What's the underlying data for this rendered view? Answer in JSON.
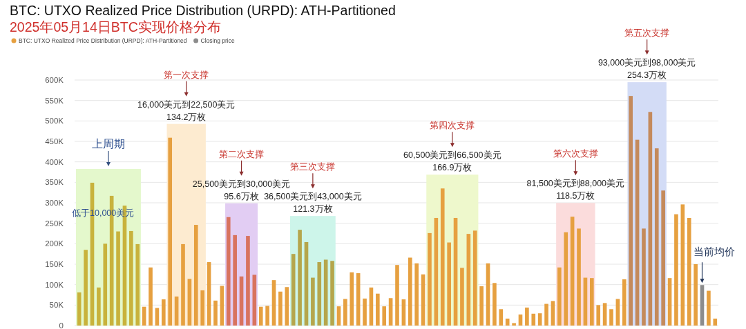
{
  "chart_data": {
    "type": "bar",
    "title": "BTC: UTXO Realized Price Distribution (URPD): ATH-Partitioned",
    "subtitle": "2025年05月14日BTC实现价格分布",
    "categories": [
      null,
      null,
      null,
      null,
      null,
      null,
      null,
      null,
      null,
      null,
      null,
      null,
      null,
      null,
      null,
      null,
      null,
      null,
      null,
      null,
      null,
      null,
      null,
      null,
      null,
      null,
      null,
      null,
      null,
      null,
      null,
      null,
      null,
      null,
      null,
      null,
      null,
      null,
      null,
      null,
      null,
      null,
      null,
      null,
      null,
      null,
      null,
      null,
      null,
      null,
      null,
      null,
      null,
      null,
      null,
      null,
      null,
      null,
      null,
      null,
      null,
      null,
      null,
      null,
      null,
      null,
      null,
      null,
      null,
      null,
      null,
      null,
      null,
      null,
      null,
      null,
      null,
      null,
      null,
      null,
      null,
      null,
      null,
      null,
      null,
      null,
      null,
      null,
      null,
      null,
      null,
      null,
      null,
      null,
      null,
      null,
      null,
      null,
      null
    ],
    "series": [
      {
        "name": "BTC: UTXO Realized Price Distribution (URPD): ATH-Partitioned",
        "color": "#e6a040",
        "colors": [
          "#c8b23c",
          "#c8b23c",
          "#c8b23c",
          "#c8b23c",
          "#c8b23c",
          "#c8b23c",
          "#c8b23c",
          "#c8b23c",
          "#c8b23c",
          "#c8b23c",
          "#e6a040",
          "#e6a040",
          "#e6a040",
          "#e6a040",
          "#e6a040",
          "#e6a040",
          "#e6a040",
          "#e6a040",
          "#e6a040",
          "#e6a040",
          "#e6a040",
          "#e6a040",
          "#e6a040",
          "#d8735f",
          "#d8735f",
          "#d8735f",
          "#d8735f",
          "#d8735f",
          "#e6a040",
          "#e6a040",
          "#e6a040",
          "#e6a040",
          "#e6a040",
          "#b5a64c",
          "#b5a64c",
          "#b5a64c",
          "#b5a64c",
          "#b5a64c",
          "#b5a64c",
          "#b5a64c",
          "#e6a040",
          "#e6a040",
          "#e6a040",
          "#e6a040",
          "#e6a040",
          "#e6a040",
          "#e6a040",
          "#e6a040",
          "#e6a040",
          "#e6a040",
          "#e6a040",
          "#e6a040",
          "#e6a040",
          "#e6a040",
          "#e6a040",
          "#e6a040",
          "#e6a040",
          "#e6a040",
          "#e6a040",
          "#e6a040",
          "#e6a040",
          "#e6a040",
          "#e6a040",
          "#e6a040",
          "#e6a040",
          "#e6a040",
          "#e6a040",
          "#e6a040",
          "#e6a040",
          "#e6a040",
          "#e6a040",
          "#e6a040",
          "#e6a040",
          "#e6a040",
          "#e6a040",
          "#e6a040",
          "#e6a040",
          "#e6a040",
          "#e6a040",
          "#e6a040",
          "#e6a040",
          "#e6a040",
          "#e6a040",
          "#e6a040",
          "#e6a040",
          "#c48a5c",
          "#c48a5c",
          "#c48a5c",
          "#c48a5c",
          "#c48a5c",
          "#c48a5c",
          "#e6a040",
          "#e6a040",
          "#e6a040",
          "#e6a040",
          "#e6a040",
          null,
          "#e6a040",
          "#e6a040"
        ],
        "values": [
          81000,
          185000,
          349000,
          93000,
          200000,
          317000,
          230000,
          293000,
          231000,
          199000,
          46000,
          142000,
          43000,
          64000,
          459000,
          71000,
          199000,
          114000,
          246000,
          86000,
          155000,
          61000,
          97000,
          265000,
          221000,
          120000,
          219000,
          124000,
          46000,
          48000,
          111000,
          83000,
          94000,
          175000,
          234000,
          204000,
          117000,
          155000,
          161000,
          158000,
          47000,
          65000,
          130000,
          128000,
          66000,
          93000,
          78000,
          47000,
          67000,
          148000,
          64000,
          166000,
          152000,
          125000,
          226000,
          263000,
          335000,
          203000,
          263000,
          141000,
          224000,
          232000,
          96000,
          152000,
          104000,
          40000,
          17000,
          6000,
          27000,
          44000,
          29000,
          30000,
          53000,
          60000,
          142000,
          228000,
          266000,
          237000,
          117000,
          116000,
          50000,
          55000,
          40000,
          65000,
          113000,
          561000,
          454000,
          237000,
          522000,
          433000,
          330000,
          116000,
          272000,
          296000,
          263000,
          150000,
          null,
          85000,
          17000
        ]
      },
      {
        "name": "Closing price",
        "color": "#8c8c8c",
        "values": [
          null,
          null,
          null,
          null,
          null,
          null,
          null,
          null,
          null,
          null,
          null,
          null,
          null,
          null,
          null,
          null,
          null,
          null,
          null,
          null,
          null,
          null,
          null,
          null,
          null,
          null,
          null,
          null,
          null,
          null,
          null,
          null,
          null,
          null,
          null,
          null,
          null,
          null,
          null,
          null,
          null,
          null,
          null,
          null,
          null,
          null,
          null,
          null,
          null,
          null,
          null,
          null,
          null,
          null,
          null,
          null,
          null,
          null,
          null,
          null,
          null,
          null,
          null,
          null,
          null,
          null,
          null,
          null,
          null,
          null,
          null,
          null,
          null,
          null,
          null,
          null,
          null,
          null,
          null,
          null,
          null,
          null,
          null,
          null,
          null,
          null,
          null,
          null,
          null,
          null,
          null,
          null,
          null,
          null,
          null,
          null,
          99000,
          null,
          null
        ]
      }
    ],
    "ylim": [
      0,
      600000
    ],
    "yticks": [
      0,
      {
        "value": 50000,
        "label": "50K"
      },
      {
        "value": 100000,
        "label": "100K"
      },
      {
        "value": 150000,
        "label": "150K"
      },
      {
        "value": 200000,
        "label": "200K"
      },
      {
        "value": 250000,
        "label": "250K"
      },
      {
        "value": 300000,
        "label": "300K"
      },
      {
        "value": 350000,
        "label": "350K"
      },
      {
        "value": 400000,
        "label": "400K"
      },
      {
        "value": 450000,
        "label": "450K"
      },
      {
        "value": 500000,
        "label": "500K"
      },
      {
        "value": 550000,
        "label": "550K"
      },
      {
        "value": 600000,
        "label": "600K"
      }
    ],
    "grid": "y",
    "legend": "top left",
    "tick_labels": "y",
    "annotations": [
      "上周期",
      "低于10,000美元",
      "第一次支撑",
      "16,000美元到22,500美元",
      "134.2万枚",
      "第二次支撑",
      "25,500美元到30,000美元",
      "95.6万枚",
      "第三次支撑",
      "36,500美元到43,000美元",
      "121.3万枚",
      "第四次支撑",
      "60,500美元到66,500美元",
      "166.9万枚",
      "第六次支撑",
      "81,500美元到88,000美元",
      "118.5万枚",
      "第五次支撑",
      "93,000美元到98,000美元",
      "254.3万枚",
      "当前均价"
    ]
  }
}
